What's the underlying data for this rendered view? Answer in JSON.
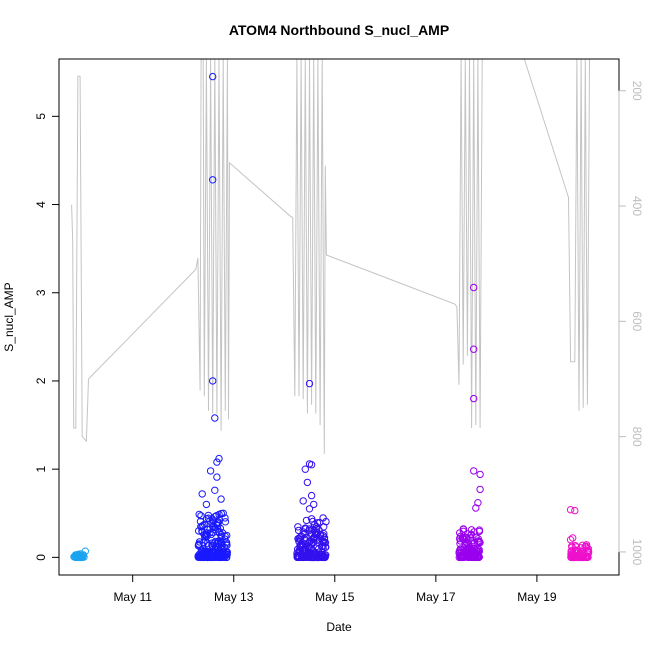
{
  "chart_data": {
    "type": "scatter",
    "title": "ATOM4 Northbound S_nucl_AMP",
    "xlabel": "Date",
    "ylabel": "S_nucl_AMP",
    "xlim": [
      "2024-05-09T13:00",
      "2024-05-20T15:00"
    ],
    "ylim": [
      -0.2,
      5.65
    ],
    "y2lim": [
      1040,
      145
    ],
    "x_ticks": [
      {
        "date": "2024-05-11",
        "label": "May 11"
      },
      {
        "date": "2024-05-13",
        "label": "May 13"
      },
      {
        "date": "2024-05-15",
        "label": "May 15"
      },
      {
        "date": "2024-05-17",
        "label": "May 17"
      },
      {
        "date": "2024-05-19",
        "label": "May 19"
      }
    ],
    "y_ticks": [
      0,
      1,
      2,
      3,
      4,
      5
    ],
    "y2_ticks": [
      200,
      400,
      600,
      800,
      1000
    ],
    "grid": false,
    "colors": {
      "g1": "#1aa3f0",
      "g2": "#1a1aff",
      "g3": "#3311ee",
      "g4": "#9900ee",
      "g5": "#ee11cc",
      "line": "#c4c4c4"
    },
    "point_groups": [
      {
        "color_key": "g1",
        "t0": "2024-05-09T20:00",
        "t1": "2024-05-10T01:00",
        "n": 40,
        "max": 0.04,
        "extra": [
          [
            "2024-05-10T01:30",
            0.07
          ]
        ]
      },
      {
        "color_key": "g2",
        "t0": "2024-05-12T07:00",
        "t1": "2024-05-12T21:00",
        "n": 200,
        "max": 0.5,
        "extra": [
          [
            "2024-05-12T14:00",
            5.45
          ],
          [
            "2024-05-12T14:00",
            4.28
          ],
          [
            "2024-05-12T14:00",
            2.0
          ],
          [
            "2024-05-12T15:00",
            1.58
          ],
          [
            "2024-05-12T17:00",
            1.12
          ],
          [
            "2024-05-12T16:00",
            1.08
          ],
          [
            "2024-05-12T13:00",
            0.98
          ],
          [
            "2024-05-12T16:00",
            0.91
          ],
          [
            "2024-05-12T09:00",
            0.72
          ],
          [
            "2024-05-12T15:00",
            0.76
          ],
          [
            "2024-05-12T18:00",
            0.66
          ],
          [
            "2024-05-12T11:00",
            0.6
          ],
          [
            "2024-05-12T19:00",
            0.5
          ]
        ]
      },
      {
        "color_key": "g3",
        "t0": "2024-05-14T06:00",
        "t1": "2024-05-14T20:00",
        "n": 200,
        "max": 0.45,
        "extra": [
          [
            "2024-05-14T12:00",
            1.97
          ],
          [
            "2024-05-14T12:00",
            1.06
          ],
          [
            "2024-05-14T13:00",
            1.05
          ],
          [
            "2024-05-14T10:00",
            1.0
          ],
          [
            "2024-05-14T11:00",
            0.85
          ],
          [
            "2024-05-14T13:00",
            0.7
          ],
          [
            "2024-05-14T09:00",
            0.64
          ],
          [
            "2024-05-14T14:00",
            0.6
          ],
          [
            "2024-05-14T12:00",
            0.55
          ]
        ]
      },
      {
        "color_key": "g4",
        "t0": "2024-05-17T11:00",
        "t1": "2024-05-17T21:00",
        "n": 130,
        "max": 0.35,
        "extra": [
          [
            "2024-05-17T18:00",
            3.06
          ],
          [
            "2024-05-17T18:00",
            2.36
          ],
          [
            "2024-05-17T18:00",
            1.8
          ],
          [
            "2024-05-17T18:00",
            0.98
          ],
          [
            "2024-05-17T21:00",
            0.94
          ],
          [
            "2024-05-17T21:00",
            0.77
          ],
          [
            "2024-05-17T20:00",
            0.62
          ],
          [
            "2024-05-17T19:00",
            0.56
          ]
        ]
      },
      {
        "color_key": "g5",
        "t0": "2024-05-19T16:00",
        "t1": "2024-05-20T01:00",
        "n": 80,
        "max": 0.15,
        "extra": [
          [
            "2024-05-19T16:00",
            0.54
          ],
          [
            "2024-05-19T18:00",
            0.53
          ],
          [
            "2024-05-19T17:00",
            0.22
          ],
          [
            "2024-05-19T16:00",
            0.2
          ]
        ]
      }
    ],
    "line_series": [
      [
        "2024-05-09T19:00",
        398
      ],
      [
        "2024-05-09T19:30",
        460
      ],
      [
        "2024-05-09T20:00",
        785
      ],
      [
        "2024-05-09T21:00",
        785
      ],
      [
        "2024-05-09T22:00",
        175
      ],
      [
        "2024-05-09T23:00",
        175
      ],
      [
        "2024-05-10T00:00",
        800
      ],
      [
        "2024-05-10T02:00",
        808
      ],
      [
        "2024-05-10T03:00",
        700
      ],
      [
        "2024-05-12T06:00",
        510
      ],
      [
        "2024-05-12T07:00",
        490
      ],
      [
        "2024-05-12T08:00",
        720
      ],
      [
        "2024-05-12T08:30",
        145
      ],
      [
        "2024-05-12T09:30",
        145
      ],
      [
        "2024-05-12T10:00",
        730
      ],
      [
        "2024-05-12T11:00",
        145
      ],
      [
        "2024-05-12T12:00",
        755
      ],
      [
        "2024-05-12T13:00",
        145
      ],
      [
        "2024-05-12T14:00",
        760
      ],
      [
        "2024-05-12T15:00",
        145
      ],
      [
        "2024-05-12T16:00",
        760
      ],
      [
        "2024-05-12T17:00",
        145
      ],
      [
        "2024-05-12T18:00",
        790
      ],
      [
        "2024-05-12T19:00",
        145
      ],
      [
        "2024-05-12T20:00",
        755
      ],
      [
        "2024-05-12T21:00",
        145
      ],
      [
        "2024-05-12T21:30",
        770
      ],
      [
        "2024-05-12T22:00",
        325
      ],
      [
        "2024-05-14T03:00",
        418
      ],
      [
        "2024-05-14T04:00",
        420
      ],
      [
        "2024-05-14T05:00",
        730
      ],
      [
        "2024-05-14T06:00",
        145
      ],
      [
        "2024-05-14T07:00",
        730
      ],
      [
        "2024-05-14T08:00",
        145
      ],
      [
        "2024-05-14T09:00",
        735
      ],
      [
        "2024-05-14T10:00",
        145
      ],
      [
        "2024-05-14T11:00",
        760
      ],
      [
        "2024-05-14T12:00",
        145
      ],
      [
        "2024-05-14T13:00",
        745
      ],
      [
        "2024-05-14T14:00",
        145
      ],
      [
        "2024-05-14T15:00",
        760
      ],
      [
        "2024-05-14T16:00",
        145
      ],
      [
        "2024-05-14T17:00",
        780
      ],
      [
        "2024-05-14T18:00",
        145
      ],
      [
        "2024-05-14T19:00",
        830
      ],
      [
        "2024-05-14T19:30",
        330
      ],
      [
        "2024-05-14T20:00",
        485
      ],
      [
        "2024-05-17T09:00",
        570
      ],
      [
        "2024-05-17T10:00",
        575
      ],
      [
        "2024-05-17T11:00",
        710
      ],
      [
        "2024-05-17T12:00",
        145
      ],
      [
        "2024-05-17T13:00",
        675
      ],
      [
        "2024-05-17T14:00",
        145
      ],
      [
        "2024-05-17T15:00",
        660
      ],
      [
        "2024-05-17T16:00",
        145
      ],
      [
        "2024-05-17T17:00",
        785
      ],
      [
        "2024-05-17T18:00",
        145
      ],
      [
        "2024-05-17T19:00",
        780
      ],
      [
        "2024-05-17T20:00",
        145
      ],
      [
        "2024-05-17T21:00",
        785
      ],
      [
        "2024-05-17T22:00",
        145
      ],
      [
        "2024-05-18T18:00",
        145
      ],
      [
        "2024-05-19T15:00",
        385
      ],
      [
        "2024-05-19T16:00",
        670
      ],
      [
        "2024-05-19T18:00",
        670
      ],
      [
        "2024-05-19T19:00",
        145
      ],
      [
        "2024-05-19T20:00",
        755
      ],
      [
        "2024-05-19T21:00",
        145
      ],
      [
        "2024-05-19T22:00",
        750
      ],
      [
        "2024-05-19T23:00",
        145
      ],
      [
        "2024-05-20T00:00",
        745
      ],
      [
        "2024-05-20T01:00",
        145
      ]
    ]
  }
}
